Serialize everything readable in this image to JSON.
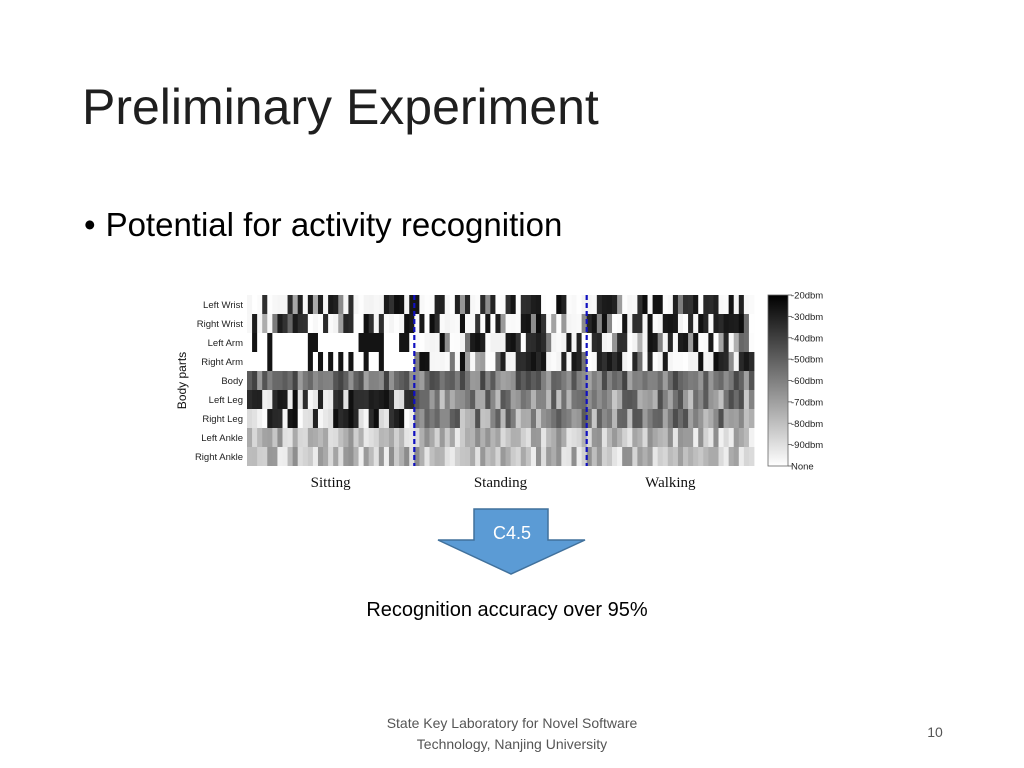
{
  "slide": {
    "title": "Preliminary Experiment",
    "bullet_text": "Potential for activity recognition",
    "bullet_glyph": "•",
    "result_text": "Recognition accuracy over 95%",
    "footer_line1": "State Key Laboratory for Novel Software",
    "footer_line2": "Technology, Nanjing University",
    "page_number": "10"
  },
  "arrow": {
    "label": "C4.5",
    "fill_color": "#5b9bd5",
    "stroke_color": "#41719c"
  },
  "chart_data": {
    "type": "heatmap",
    "ylabel": "Body parts",
    "rows": [
      "Left Wrist",
      "Right Wrist",
      "Left Arm",
      "Right Arm",
      "Body",
      "Left Leg",
      "Right Leg",
      "Left Ankle",
      "Right Ankle"
    ],
    "activities": [
      "Sitting",
      "Standing",
      "Walking"
    ],
    "colorbar": {
      "labels": [
        "-20dbm",
        "-30dbm",
        "-40dbm",
        "-50dbm",
        "-60dbm",
        "-70dbm",
        "-80dbm",
        "-90dbm",
        "None"
      ],
      "range": [
        -20,
        -100
      ],
      "scale_colors": [
        "#000000",
        "#ffffff"
      ]
    },
    "separator_color": "#1010c0",
    "num_columns": 100
  }
}
